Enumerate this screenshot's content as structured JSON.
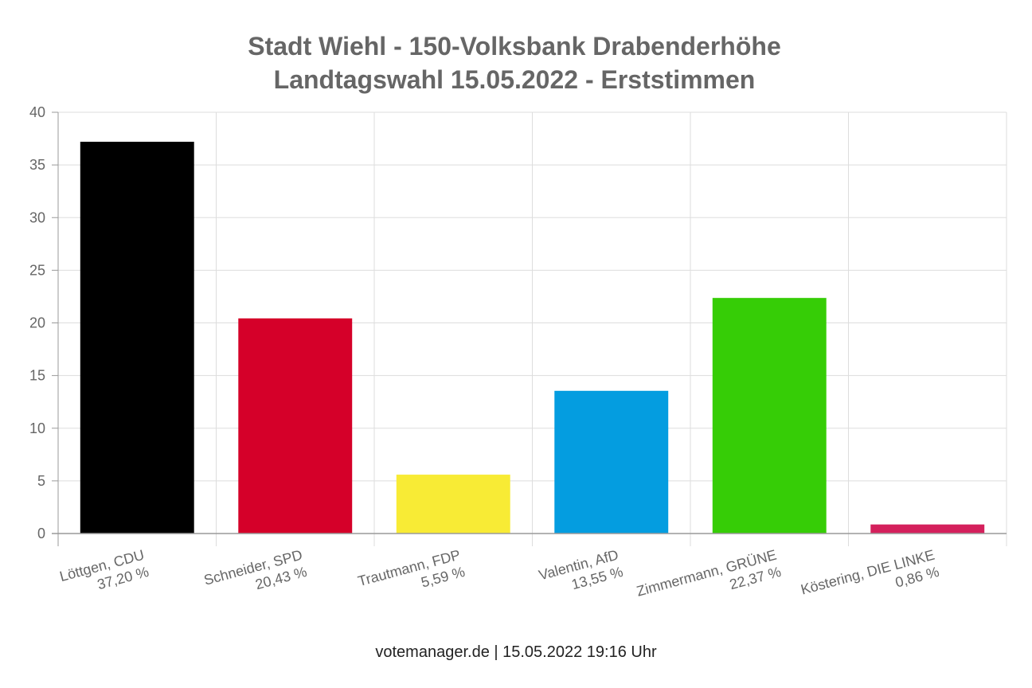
{
  "chart_data": {
    "type": "bar",
    "title": [
      "Stadt Wiehl - 150-Volksbank Drabenderhöhe",
      "Landtagswahl 15.05.2022  - Erststimmen"
    ],
    "categories": [
      [
        "Löttgen, CDU",
        "37,20 %"
      ],
      [
        "Schneider, SPD",
        "20,43 %"
      ],
      [
        "Trautmann, FDP",
        "5,59 %"
      ],
      [
        "Valentin, AfD",
        "13,55 %"
      ],
      [
        "Zimmermann, GRÜNE",
        "22,37 %"
      ],
      [
        "Köstering, DIE LINKE",
        "0,86 %"
      ]
    ],
    "values": [
      37.2,
      20.43,
      5.59,
      13.55,
      22.37,
      0.86
    ],
    "colors": [
      "#000000",
      "#d50029",
      "#f8eb35",
      "#049de0",
      "#36cd06",
      "#d4205c"
    ],
    "ylim": [
      0,
      40
    ],
    "yticks": [
      "0",
      "5",
      "10",
      "15",
      "20",
      "25",
      "30",
      "35",
      "40"
    ],
    "grid": true,
    "legend": "none"
  },
  "footer": "votemanager.de | 15.05.2022 19:16 Uhr"
}
